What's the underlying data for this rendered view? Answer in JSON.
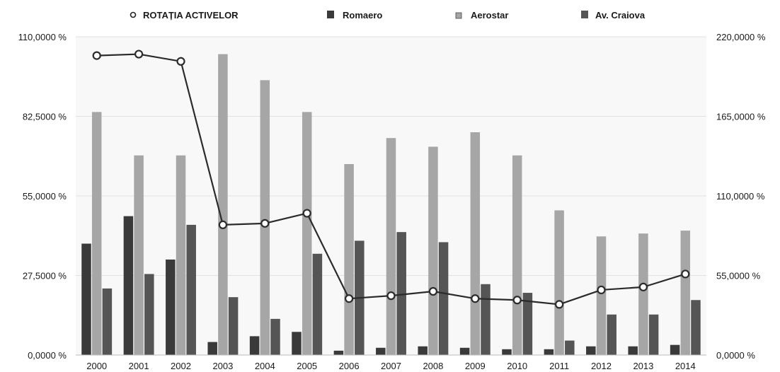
{
  "chart_data": {
    "type": "bar",
    "categories": [
      "2000",
      "2001",
      "2002",
      "2003",
      "2004",
      "2005",
      "2006",
      "2007",
      "2008",
      "2009",
      "2010",
      "2011",
      "2012",
      "2013",
      "2014"
    ],
    "series": [
      {
        "name": "ROTAȚIA ACTIVELOR",
        "type": "line",
        "axis": "right",
        "values": [
          207,
          208,
          203,
          90,
          91,
          98,
          39,
          41,
          44,
          39,
          38,
          35,
          45,
          47,
          56
        ]
      },
      {
        "name": "Romaero",
        "type": "bar",
        "axis": "left",
        "values": [
          38.5,
          48,
          33,
          4.5,
          6.5,
          8,
          1.5,
          2.5,
          3,
          2.5,
          2,
          2,
          3,
          3,
          3.5
        ]
      },
      {
        "name": "Aerostar",
        "type": "bar",
        "axis": "left",
        "values": [
          84,
          69,
          69,
          104,
          95,
          84,
          66,
          75,
          72,
          77,
          69,
          50,
          41,
          42,
          43
        ]
      },
      {
        "name": "Av. Craiova",
        "type": "bar",
        "axis": "left",
        "values": [
          23,
          28,
          45,
          20,
          12.5,
          35,
          39.5,
          42.5,
          39,
          24.5,
          21.5,
          5,
          14,
          14,
          19
        ]
      }
    ],
    "y_left": {
      "ylim": [
        0,
        110
      ],
      "ticks": [
        "0,0000 %",
        "27,5000 %",
        "55,0000 %",
        "82,5000 %",
        "110,0000 %"
      ]
    },
    "y_right": {
      "ylim": [
        0,
        220
      ],
      "ticks": [
        "0,0000 %",
        "55,0000 %",
        "110,0000 %",
        "165,0000 %",
        "220,0000 %"
      ]
    },
    "legend_position": "top",
    "grid": true,
    "colors": {
      "Romaero": "#3a3a3a",
      "Aerostar": "#a6a6a6",
      "Av. Craiova": "#555555",
      "line": "#2b2b2b"
    }
  }
}
